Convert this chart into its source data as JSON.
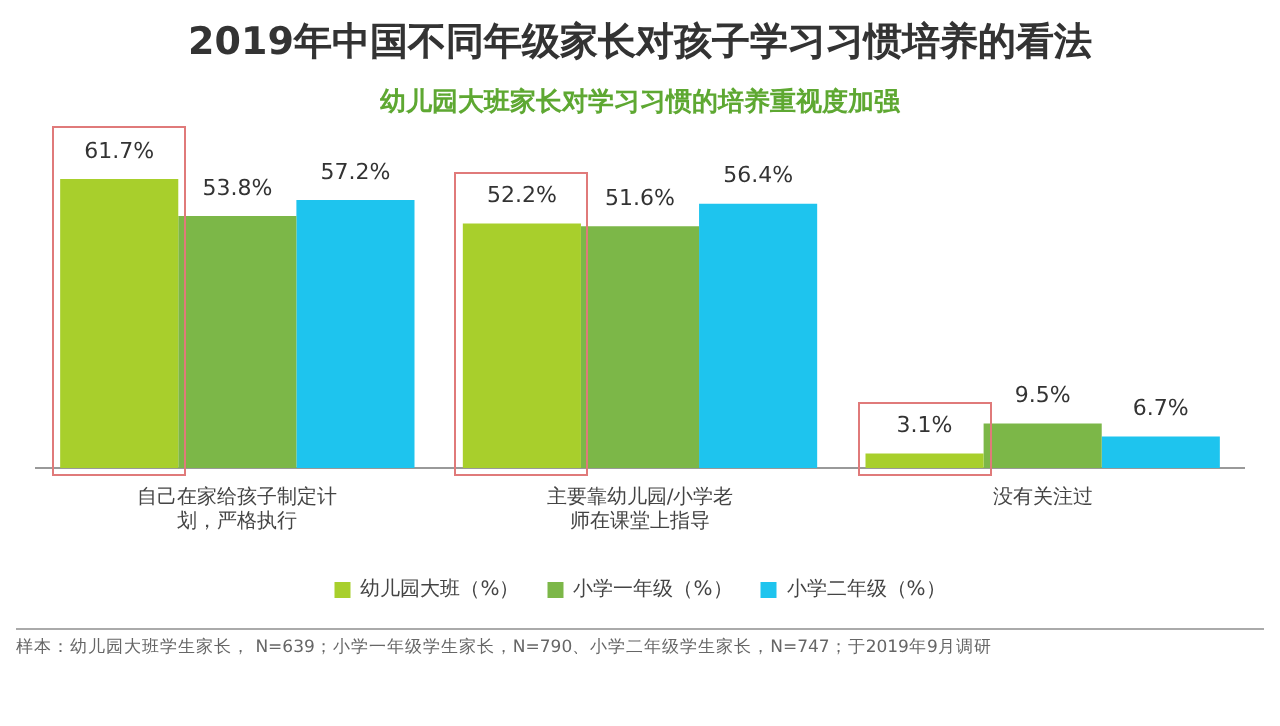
{
  "chart_data": {
    "type": "bar",
    "title": "2019年中国不同年级家长对孩子学习习惯培养的看法",
    "subtitle": "幼儿园大班家长对学习习惯的培养重视度加强",
    "categories": [
      "自己在家给孩子制定计划，严格执行",
      "主要靠幼儿园/小学老师在课堂上指导",
      "没有关注过"
    ],
    "series": [
      {
        "name": "幼儿园大班（%）",
        "color": "#a8cf2c",
        "values": [
          61.7,
          52.2,
          3.1
        ],
        "value_labels": [
          "61.7%",
          "52.2%",
          "3.1%"
        ]
      },
      {
        "name": "小学一年级（%）",
        "color": "#7cb748",
        "values": [
          53.8,
          51.6,
          9.5
        ],
        "value_labels": [
          "53.8%",
          "51.6%",
          "9.5%"
        ]
      },
      {
        "name": "小学二年级（%）",
        "color": "#1ec4ee",
        "values": [
          57.2,
          56.4,
          6.7
        ],
        "value_labels": [
          "57.2%",
          "56.4%",
          "6.7%"
        ]
      }
    ],
    "legend": "bottom",
    "grid": false,
    "annotations": [
      "样本：幼儿园大班学生家长， N=639；小学一年级学生家长，N=790、小学二年级学生家长，N=747；于2019年9月调研"
    ]
  }
}
